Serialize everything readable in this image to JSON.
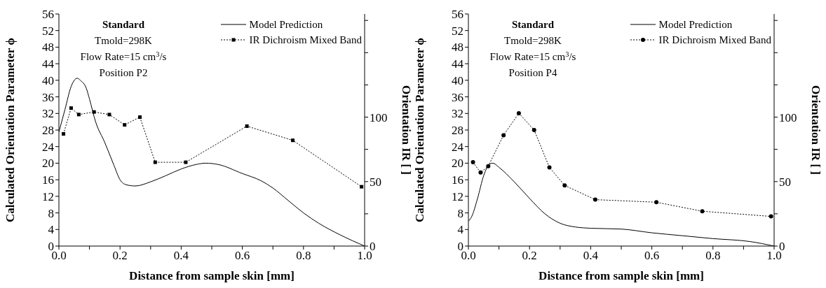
{
  "chart_data": [
    {
      "type": "line",
      "xlabel": "Distance from sample skin [mm]",
      "ylabel": "Calculated Orientation Parameter ϕ",
      "y2label": "Orientation IR [ ]",
      "annotations": [
        "Standard",
        "Tmold=298K",
        "Flow Rate=15 cm$^{3}$/s",
        "Position P2"
      ],
      "xlim": [
        0,
        1
      ],
      "xticks": [
        {
          "value": 0,
          "label": "0.0"
        },
        {
          "value": 0.1,
          "label": null
        },
        0.2,
        {
          "value": 0.3,
          "label": null
        },
        0.4,
        {
          "value": 0.5,
          "label": null
        },
        0.6,
        {
          "value": 0.7,
          "label": null
        },
        0.8,
        {
          "value": 0.9,
          "label": null
        },
        {
          "value": 1,
          "label": "1.0"
        }
      ],
      "ylim": [
        0,
        56
      ],
      "yticks": [
        0,
        4,
        8,
        12,
        16,
        20,
        24,
        28,
        32,
        36,
        40,
        44,
        48,
        52,
        56
      ],
      "y2lim": [
        0,
        180
      ],
      "y2ticks": [
        0,
        {
          "value": 25,
          "label": null
        },
        50,
        {
          "value": 75,
          "label": null
        },
        100,
        {
          "value": 125,
          "label": null
        },
        {
          "value": 150,
          "label": null
        },
        {
          "value": 175,
          "label": null
        }
      ],
      "legend": "top right",
      "series": [
        {
          "name": "Model Prediction",
          "color": "#000000",
          "marker": "none",
          "line_style": "solid",
          "x": [
            0,
            0.02,
            0.04,
            0.06,
            0.07,
            0.09,
            0.1,
            0.12,
            0.15,
            0.18,
            0.2,
            0.22,
            0.25,
            0.3,
            0.35,
            0.4,
            0.45,
            0.48,
            0.52,
            0.6,
            0.66,
            0.7,
            0.75,
            0.8,
            0.85,
            0.92,
            1
          ],
          "values": [
            27.5,
            33,
            38.5,
            40.5,
            40,
            38,
            35.5,
            30,
            25,
            19.5,
            16,
            14.8,
            14.5,
            15.5,
            17,
            18.6,
            19.7,
            20,
            19.7,
            17.5,
            15.8,
            14,
            11,
            8,
            5.5,
            2.7,
            0
          ]
        },
        {
          "name": "IR Dichroism Mixed Band",
          "color": "#000000",
          "marker": "square",
          "line_style": "dotted",
          "axis": "y2",
          "x": [
            0.015,
            0.04,
            0.065,
            0.115,
            0.165,
            0.215,
            0.265,
            0.315,
            0.415,
            0.615,
            0.765,
            0.99
          ],
          "values": [
            87,
            107,
            102,
            104,
            102,
            94,
            100,
            65,
            65,
            93,
            82,
            46
          ]
        }
      ]
    },
    {
      "type": "line",
      "xlabel": "Distance from sample skin [mm]",
      "ylabel": "Calculated Orientation Parameter ϕ",
      "y2label": "Orientation IR [ ]",
      "annotations": [
        "Standard",
        "Tmold=298K",
        "Flow Rate=15 cm$^{3}$/s",
        "Position P4"
      ],
      "xlim": [
        0,
        1
      ],
      "xticks": [
        {
          "value": 0,
          "label": "0.0"
        },
        {
          "value": 0.1,
          "label": null
        },
        0.2,
        {
          "value": 0.3,
          "label": null
        },
        0.4,
        {
          "value": 0.5,
          "label": null
        },
        0.6,
        {
          "value": 0.7,
          "label": null
        },
        0.8,
        {
          "value": 0.9,
          "label": null
        },
        {
          "value": 1,
          "label": "1.0"
        }
      ],
      "ylim": [
        0,
        56
      ],
      "yticks": [
        0,
        4,
        8,
        12,
        16,
        20,
        24,
        28,
        32,
        36,
        40,
        44,
        48,
        52,
        56
      ],
      "y2lim": [
        0,
        180
      ],
      "y2ticks": [
        0,
        {
          "value": 25,
          "label": null
        },
        50,
        {
          "value": 75,
          "label": null
        },
        100,
        {
          "value": 125,
          "label": null
        },
        {
          "value": 150,
          "label": null
        },
        {
          "value": 175,
          "label": null
        }
      ],
      "legend": "top right",
      "series": [
        {
          "name": "Model Prediction",
          "color": "#000000",
          "marker": "none",
          "line_style": "solid",
          "x": [
            0,
            0.01,
            0.03,
            0.05,
            0.07,
            0.08,
            0.1,
            0.15,
            0.2,
            0.25,
            0.3,
            0.35,
            0.4,
            0.5,
            0.6,
            0.7,
            0.8,
            0.92,
            1
          ],
          "values": [
            6,
            7,
            11.5,
            17,
            19.8,
            20,
            19,
            15.5,
            11.5,
            7.8,
            5.5,
            4.6,
            4.3,
            4.1,
            3.2,
            2.5,
            1.8,
            1.1,
            0
          ]
        },
        {
          "name": "IR Dichroism Mixed Band",
          "color": "#000000",
          "marker": "circle",
          "line_style": "dotted",
          "axis": "y2",
          "x": [
            0.015,
            0.04,
            0.065,
            0.115,
            0.165,
            0.215,
            0.265,
            0.315,
            0.415,
            0.615,
            0.765,
            0.99
          ],
          "values": [
            65,
            57,
            62,
            86,
            103,
            90,
            61,
            47,
            36,
            34,
            27,
            23
          ]
        }
      ]
    }
  ]
}
